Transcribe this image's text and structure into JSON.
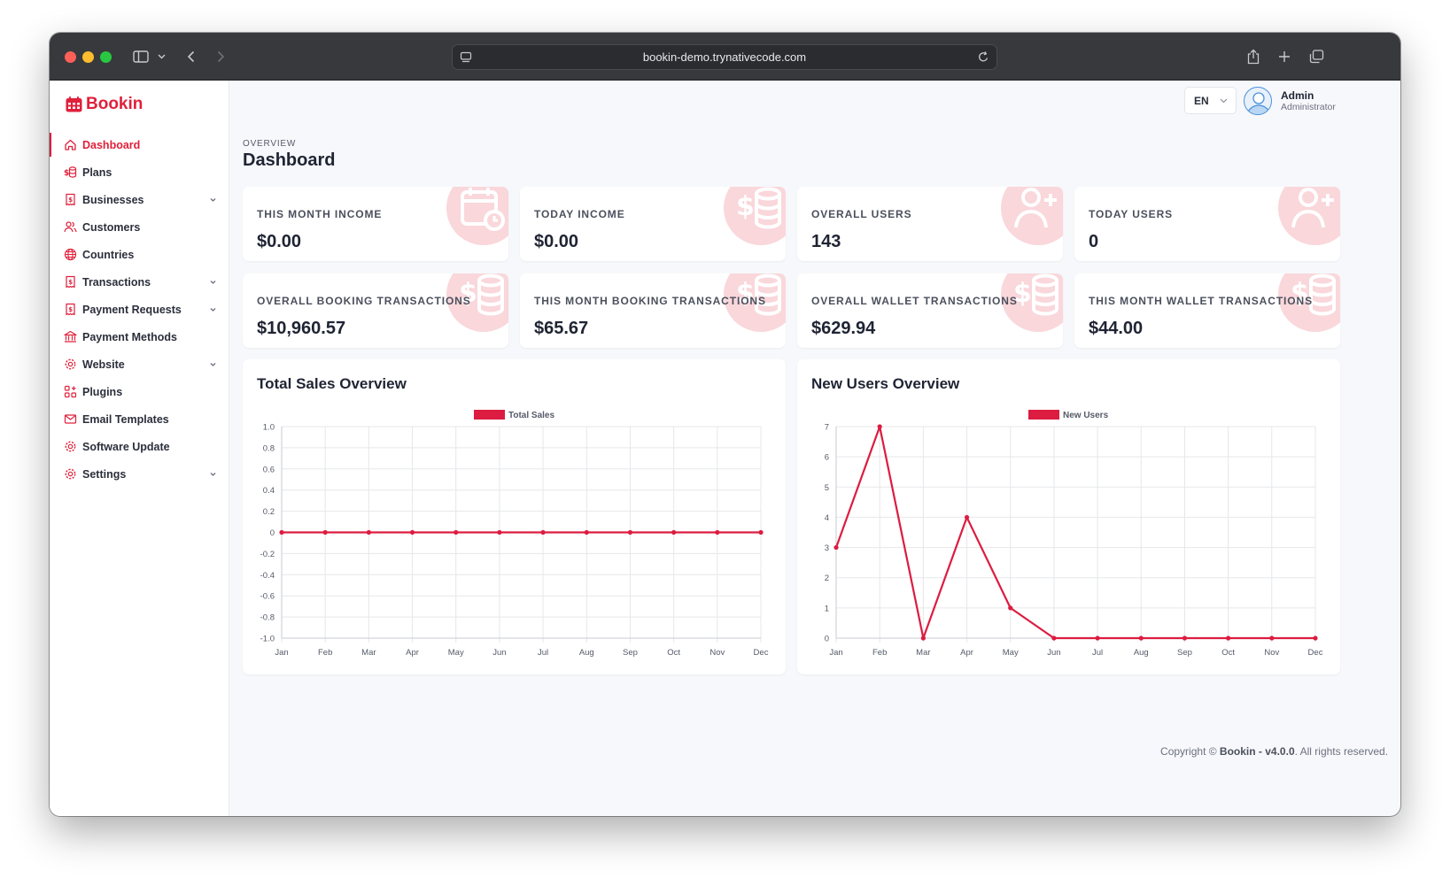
{
  "browser": {
    "url": "bookin-demo.trynativecode.com"
  },
  "app": {
    "logo_text": "Bookin",
    "brand_color": "#e0203b"
  },
  "sidebar": {
    "items": [
      {
        "label": "Dashboard",
        "icon": "home-icon",
        "active": true,
        "has_submenu": false
      },
      {
        "label": "Plans",
        "icon": "coins-icon",
        "active": false,
        "has_submenu": false
      },
      {
        "label": "Businesses",
        "icon": "receipt-icon",
        "active": false,
        "has_submenu": true
      },
      {
        "label": "Customers",
        "icon": "users-icon",
        "active": false,
        "has_submenu": false
      },
      {
        "label": "Countries",
        "icon": "globe-icon",
        "active": false,
        "has_submenu": false
      },
      {
        "label": "Transactions",
        "icon": "receipt-icon",
        "active": false,
        "has_submenu": true
      },
      {
        "label": "Payment Requests",
        "icon": "receipt-icon",
        "active": false,
        "has_submenu": true
      },
      {
        "label": "Payment Methods",
        "icon": "bank-icon",
        "active": false,
        "has_submenu": false
      },
      {
        "label": "Website",
        "icon": "gear-icon",
        "active": false,
        "has_submenu": true
      },
      {
        "label": "Plugins",
        "icon": "grid-plus-icon",
        "active": false,
        "has_submenu": false
      },
      {
        "label": "Email Templates",
        "icon": "mail-icon",
        "active": false,
        "has_submenu": false
      },
      {
        "label": "Software Update",
        "icon": "gear-icon",
        "active": false,
        "has_submenu": false
      },
      {
        "label": "Settings",
        "icon": "gear-icon",
        "active": false,
        "has_submenu": true
      }
    ]
  },
  "header": {
    "language": "EN",
    "user_name": "Admin",
    "user_role": "Administrator"
  },
  "page": {
    "overline": "OVERVIEW",
    "title": "Dashboard"
  },
  "stats": [
    {
      "label": "THIS MONTH INCOME",
      "value": "$0.00",
      "icon": "calendar-icon"
    },
    {
      "label": "TODAY INCOME",
      "value": "$0.00",
      "icon": "dollar-coins-icon"
    },
    {
      "label": "OVERALL USERS",
      "value": "143",
      "icon": "user-plus-icon"
    },
    {
      "label": "TODAY USERS",
      "value": "0",
      "icon": "user-plus-icon"
    },
    {
      "label": "OVERALL BOOKING TRANSACTIONS",
      "value": "$10,960.57",
      "icon": "dollar-coins-icon"
    },
    {
      "label": "THIS MONTH BOOKING TRANSACTIONS",
      "value": "$65.67",
      "icon": "dollar-coins-icon"
    },
    {
      "label": "OVERALL WALLET TRANSACTIONS",
      "value": "$629.94",
      "icon": "dollar-coins-icon"
    },
    {
      "label": "THIS MONTH WALLET TRANSACTIONS",
      "value": "$44.00",
      "icon": "dollar-coins-icon"
    }
  ],
  "chart_data": [
    {
      "type": "line",
      "title": "Total Sales Overview",
      "categories": [
        "Jan",
        "Feb",
        "Mar",
        "Apr",
        "May",
        "Jun",
        "Jul",
        "Aug",
        "Sep",
        "Oct",
        "Nov",
        "Dec"
      ],
      "series": [
        {
          "name": "Total Sales",
          "values": [
            0,
            0,
            0,
            0,
            0,
            0,
            0,
            0,
            0,
            0,
            0,
            0
          ],
          "color": "#dc1c40"
        }
      ],
      "ylim": [
        -1,
        1
      ],
      "yticks": [
        "1.0",
        "0.8",
        "0.6",
        "0.4",
        "0.2",
        "0",
        "-0.2",
        "-0.4",
        "-0.6",
        "-0.8",
        "-1.0"
      ],
      "grid": true,
      "legend": "top-center"
    },
    {
      "type": "line",
      "title": "New Users Overview",
      "categories": [
        "Jan",
        "Feb",
        "Mar",
        "Apr",
        "May",
        "Jun",
        "Jul",
        "Aug",
        "Sep",
        "Oct",
        "Nov",
        "Dec"
      ],
      "series": [
        {
          "name": "New Users",
          "values": [
            3,
            7,
            0,
            4,
            1,
            0,
            0,
            0,
            0,
            0,
            0,
            0
          ],
          "color": "#dc1c40"
        }
      ],
      "ylim": [
        0,
        7
      ],
      "yticks": [
        "7",
        "6",
        "5",
        "4",
        "3",
        "2",
        "1",
        "0"
      ],
      "grid": true,
      "legend": "top-center"
    }
  ],
  "footer": {
    "prefix": "Copyright © ",
    "product": "Bookin - v4.0.0",
    "suffix": ". All rights reserved."
  }
}
